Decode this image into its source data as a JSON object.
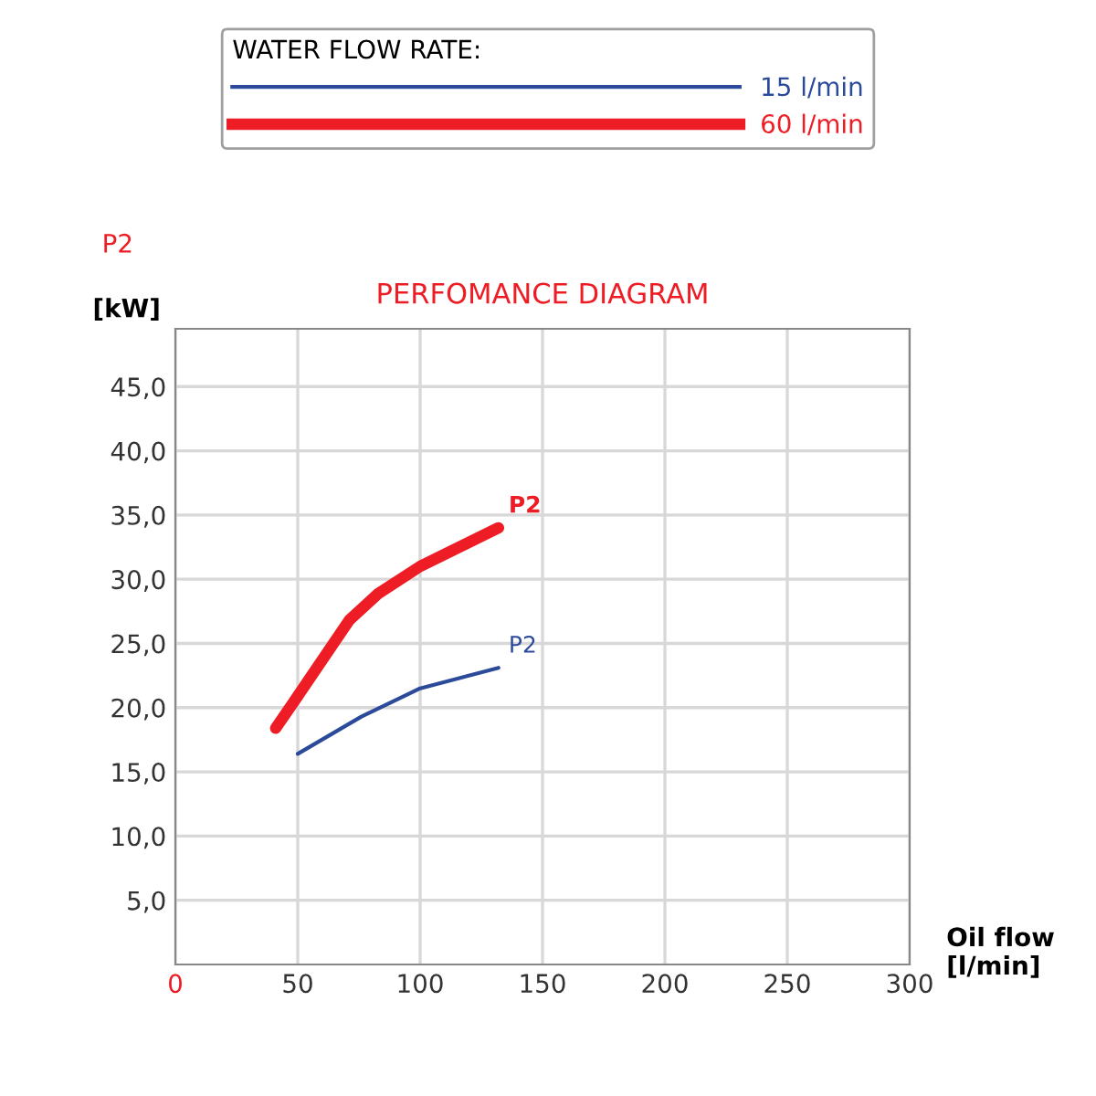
{
  "chart_data": {
    "type": "line",
    "title": "PERFOMANCE DIAGRAM",
    "xlabel": "Oil flow\n[l/min]",
    "ylabel": "[kW]",
    "legend_title": "WATER FLOW RATE:",
    "legend": "top",
    "series": [
      {
        "name": "15 l/min",
        "color": "#2b4a9a",
        "x": [
          50,
          76,
          100,
          132
        ],
        "values": [
          16.4,
          19.3,
          21.5,
          23.1
        ]
      },
      {
        "name": "60 l/min",
        "color": "#ee1c24",
        "x": [
          41,
          50,
          71,
          83,
          100,
          132
        ],
        "values": [
          18.4,
          20.9,
          26.8,
          28.9,
          31.0,
          34.0
        ]
      }
    ],
    "annotations": [
      "P2",
      {
        "text": "P2",
        "x": 132,
        "y": 23.1
      },
      {
        "text": "P2",
        "x": 132,
        "y": 34.0
      }
    ],
    "xlim": [
      0,
      300
    ],
    "ylim": [
      0,
      49.5
    ],
    "xticks": [
      0,
      50,
      100,
      150,
      200,
      250,
      300
    ],
    "yticks": [
      {
        "value": 5,
        "label": "5,0"
      },
      {
        "value": 10,
        "label": "10,0"
      },
      {
        "value": 15,
        "label": "15,0"
      },
      {
        "value": 20,
        "label": "20,0"
      },
      {
        "value": 25,
        "label": "25,0"
      },
      {
        "value": 30,
        "label": "30,0"
      },
      {
        "value": 35,
        "label": "35,0"
      },
      {
        "value": 40,
        "label": "40,0"
      },
      {
        "value": 45,
        "label": "45,0"
      }
    ],
    "grid": true,
    "marker": "none",
    "line_style": "solid"
  }
}
